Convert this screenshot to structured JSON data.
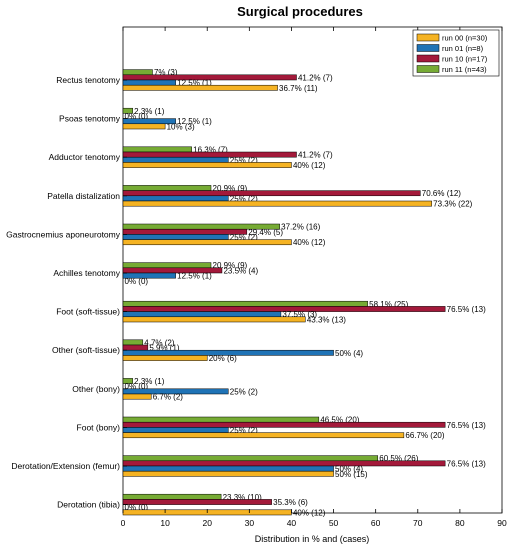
{
  "chart_data": {
    "type": "bar",
    "orientation": "horizontal",
    "title": "Surgical procedures",
    "xlabel": "Distribution in % and (cases)",
    "ylabel": "",
    "xlim": [
      0,
      90
    ],
    "xticks": [
      0,
      10,
      20,
      30,
      40,
      50,
      60,
      70,
      80,
      90
    ],
    "grid": false,
    "legend_position": "top-right",
    "categories": [
      "Rectus tenotomy",
      "Psoas tenotomy",
      "Adductor tenotomy",
      "Patella distalization",
      "Gastrocnemius aponeurotomy",
      "Achilles tenotomy",
      "Foot (soft-tissue)",
      "Other (soft-tissue)",
      "Other (bony)",
      "Foot (bony)",
      "Derotation/Extension (femur)",
      "Derotation (tibia)"
    ],
    "series": [
      {
        "name": "run 00 (n=30)",
        "color": "#F5B323",
        "values": [
          36.7,
          10,
          40,
          73.3,
          40,
          0,
          43.3,
          20,
          6.7,
          66.7,
          50,
          40
        ],
        "labels": [
          "36.7% (11)",
          "10% (3)",
          "40% (12)",
          "73.3% (22)",
          "40% (12)",
          "0% (0)",
          "43.3% (13)",
          "20% (6)",
          "6.7% (2)",
          "66.7% (20)",
          "50% (15)",
          "40% (12)"
        ]
      },
      {
        "name": "run 01 (n=8)",
        "color": "#1F73B6",
        "values": [
          12.5,
          12.5,
          25,
          25,
          25,
          12.5,
          37.5,
          50,
          25,
          25,
          50,
          0
        ],
        "labels": [
          "12.5%  (1)",
          "12.5%  (1)",
          "25%  (2)",
          "25%  (2)",
          "25%  (2)",
          "12.5%  (1)",
          "37.5%  (3)",
          "50%  (4)",
          "25%  (2)",
          "25%  (2)",
          "50%  (4)",
          "0%  (0)"
        ]
      },
      {
        "name": "run 10 (n=17)",
        "color": "#A3193A",
        "values": [
          41.2,
          0,
          41.2,
          70.6,
          29.4,
          23.5,
          76.5,
          5.9,
          0,
          76.5,
          76.5,
          35.3
        ],
        "labels": [
          "41.2% (7)",
          "0% (0)",
          "41.2% (7)",
          "70.6% (12)",
          "29.4% (5)",
          "23.5% (4)",
          "76.5% (13)",
          "5.9% (1)",
          "0% (0)",
          "76.5% (13)",
          "76.5% (13)",
          "35.3% (6)"
        ]
      },
      {
        "name": "run 11 (n=43)",
        "color": "#76AB34",
        "values": [
          7,
          2.3,
          16.3,
          20.9,
          37.2,
          20.9,
          58.1,
          4.7,
          2.3,
          46.5,
          60.5,
          23.3
        ],
        "labels": [
          "7% (3)",
          "2.3% (1)",
          "16.3% (7)",
          "20.9% (9)",
          "37.2% (16)",
          "20.9% (9)",
          "58.1% (25)",
          "4.7% (2)",
          "2.3% (1)",
          "46.5% (20)",
          "60.5% (26)",
          "23.3% (10)"
        ]
      }
    ]
  }
}
